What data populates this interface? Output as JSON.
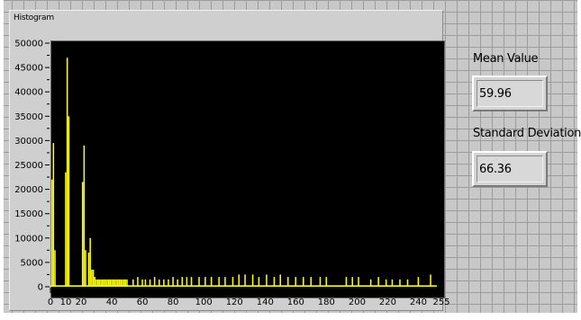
{
  "histogram": {
    "title": "Histogram",
    "colors": {
      "plot_background": "#000000",
      "bar_color": "#ffff00",
      "panel_background": "#cfcfcf"
    }
  },
  "readouts": {
    "mean_label": "Mean Value",
    "mean_value": "59.96",
    "std_label": "Standard Deviation",
    "std_value": "66.36"
  },
  "chart_data": {
    "type": "bar",
    "title": "Histogram",
    "xlabel": "",
    "ylabel": "",
    "xlim": [
      0,
      255
    ],
    "ylim": [
      0,
      50000
    ],
    "x_ticks": [
      "0",
      "10",
      "20",
      "40",
      "60",
      "80",
      "100",
      "120",
      "140",
      "160",
      "180",
      "200",
      "220",
      "240",
      "255"
    ],
    "y_ticks": [
      "0",
      "5000",
      "10000",
      "15000",
      "20000",
      "25000",
      "30000",
      "35000",
      "40000",
      "45000",
      "50000"
    ],
    "grid": false,
    "legend": "none",
    "x": [
      1,
      2,
      3,
      10,
      11,
      12,
      21,
      22,
      23,
      25,
      26,
      27,
      28,
      29,
      30,
      31,
      32,
      33,
      34,
      35,
      36,
      37,
      38,
      39,
      40,
      41,
      42,
      43,
      44,
      45,
      46,
      47,
      48,
      49,
      50,
      54,
      57,
      60,
      62,
      65,
      68,
      71,
      74,
      77,
      80,
      83,
      86,
      89,
      92,
      97,
      101,
      105,
      110,
      114,
      119,
      123,
      127,
      132,
      136,
      141,
      146,
      150,
      155,
      160,
      165,
      170,
      176,
      180,
      193,
      197,
      201,
      209,
      214,
      219,
      223,
      228,
      233,
      240,
      248
    ],
    "values": [
      22000,
      29500,
      7500,
      23500,
      47000,
      35000,
      21500,
      29000,
      7500,
      7000,
      10000,
      3500,
      3500,
      2000,
      1500,
      1500,
      1500,
      1500,
      1500,
      1500,
      1500,
      1500,
      1500,
      1500,
      1500,
      1500,
      1500,
      1500,
      1500,
      1500,
      1500,
      1500,
      1500,
      1500,
      1500,
      1500,
      2000,
      1500,
      1500,
      1500,
      2000,
      1500,
      1500,
      1500,
      2000,
      1500,
      2000,
      2000,
      2000,
      2000,
      2000,
      2000,
      2000,
      2000,
      2000,
      2500,
      2500,
      2500,
      2000,
      2500,
      2000,
      2500,
      2000,
      2000,
      2000,
      2000,
      2000,
      2000,
      2000,
      2000,
      2000,
      1500,
      2000,
      1500,
      1500,
      1500,
      1500,
      2000,
      2500
    ]
  }
}
